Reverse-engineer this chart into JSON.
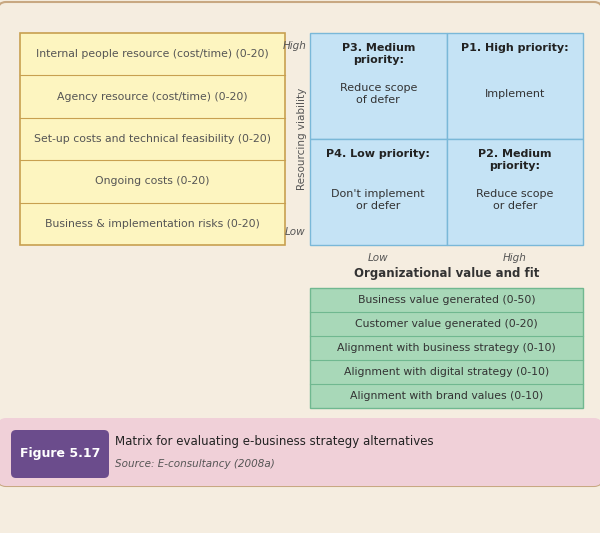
{
  "bg_color": "#f5ede0",
  "outer_border_color": "#c8a882",
  "left_box_border": "#c8a050",
  "left_box_fill": "#fdf5c0",
  "left_box_text_color": "#555555",
  "left_items": [
    "Internal people resource (cost/time) (0-20)",
    "Agency resource (cost/time) (0-20)",
    "Set-up costs and technical feasibility (0-20)",
    "Ongoing costs (0-20)",
    "Business & implementation risks (0-20)"
  ],
  "matrix_fill": "#c5e3f5",
  "matrix_border": "#7ab8d8",
  "matrix_cells": [
    {
      "label": "P3. Medium\npriority:",
      "body": "Reduce scope\nof defer",
      "row": 0,
      "col": 0
    },
    {
      "label": "P1. High priority:",
      "body": "Implement",
      "row": 0,
      "col": 1
    },
    {
      "label": "P4. Low priority:",
      "body": "Don't implement\nor defer",
      "row": 1,
      "col": 0
    },
    {
      "label": "P2. Medium\npriority:",
      "body": "Reduce scope\nor defer",
      "row": 1,
      "col": 1
    }
  ],
  "bottom_box_fill": "#a8d8b8",
  "bottom_box_border": "#70b890",
  "bottom_items": [
    "Business value generated (0-50)",
    "Customer value generated (0-20)",
    "Alignment with business strategy (0-10)",
    "Alignment with digital strategy (0-10)",
    "Alignment with brand values (0-10)"
  ],
  "bottom_text_color": "#333333",
  "axis_label_resourcing": "Resourcing viability",
  "axis_label_org": "Organizational value and fit",
  "caption_box_color": "#6b4c8c",
  "caption_bg": "#f0d0d8",
  "caption_label": "Figure 5.17",
  "caption_title": "Matrix for evaluating e-business strategy alternatives",
  "caption_source": "Source: E-consultancy (2008a)"
}
